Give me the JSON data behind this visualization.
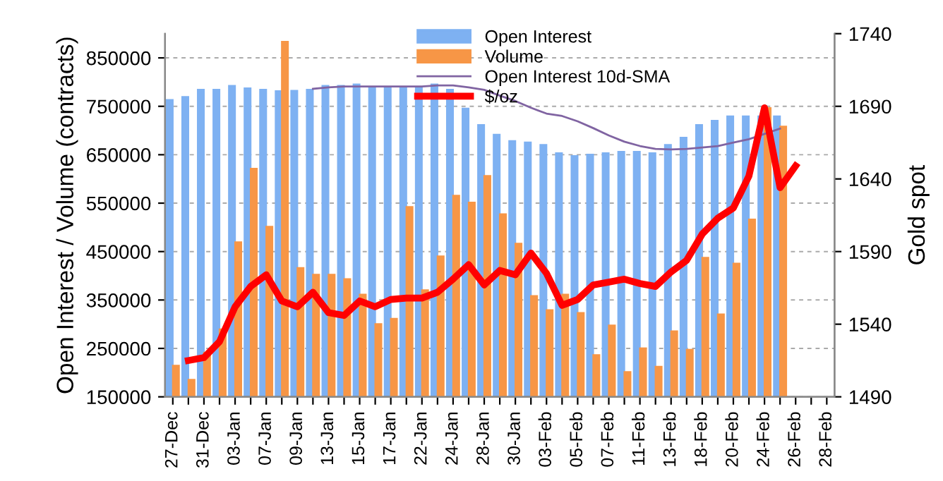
{
  "chart_data": {
    "type": "bar",
    "ylabel": "Open Interest / Volume (contracts)",
    "y2label": "Gold spot",
    "categories": [
      "27-Dec",
      null,
      "31-Dec",
      null,
      "03-Jan",
      null,
      "07-Jan",
      null,
      "09-Jan",
      null,
      "13-Jan",
      null,
      "15-Jan",
      null,
      "17-Jan",
      null,
      "22-Jan",
      null,
      "24-Jan",
      null,
      "28-Jan",
      null,
      "30-Jan",
      null,
      "03-Feb",
      null,
      "05-Feb",
      null,
      "07-Feb",
      null,
      "11-Feb",
      null,
      "13-Feb",
      null,
      "18-Feb",
      null,
      "20-Feb",
      null,
      "24-Feb",
      null,
      "26-Feb",
      null,
      "28-Feb"
    ],
    "series": [
      {
        "name": "Open Interest",
        "color": "#7eb1f2",
        "values": [
          765000,
          771000,
          786000,
          786000,
          794000,
          789000,
          786000,
          783000,
          784000,
          786000,
          794000,
          794000,
          797000,
          791000,
          791000,
          791000,
          791000,
          797000,
          786000,
          747000,
          713000,
          693000,
          680000,
          677000,
          672000,
          655000,
          649000,
          652000,
          655000,
          658000,
          658000,
          655000,
          672000,
          687000,
          713000,
          722000,
          731000,
          731000,
          731000,
          731000,
          null,
          null,
          null
        ]
      },
      {
        "name": "Volume",
        "color": "#f79646",
        "values": [
          216000,
          187000,
          243000,
          291000,
          471000,
          623000,
          503000,
          885000,
          418000,
          404000,
          404000,
          395000,
          363000,
          302000,
          313000,
          544000,
          372000,
          442000,
          567000,
          553000,
          608000,
          529000,
          468000,
          360000,
          331000,
          363000,
          325000,
          238000,
          299000,
          203000,
          252000,
          214000,
          287000,
          249000,
          439000,
          322000,
          427000,
          518000,
          748000,
          710000,
          null,
          null,
          null
        ]
      },
      {
        "name": "Open Interest 10d-SMA",
        "type": "line",
        "color": "#8064a2",
        "values": [
          null,
          null,
          null,
          null,
          null,
          null,
          null,
          null,
          null,
          786000,
          789000,
          791000,
          791000,
          791000,
          791000,
          791000,
          791000,
          793000,
          793000,
          789000,
          784000,
          772000,
          761000,
          747000,
          735000,
          730000,
          719000,
          705000,
          690000,
          677000,
          668000,
          662000,
          661000,
          662000,
          665000,
          668000,
          675000,
          682000,
          693000,
          704000,
          null,
          null,
          null
        ]
      },
      {
        "name": "$/oz",
        "type": "line",
        "axis": "y2",
        "color": "#ff0000",
        "values": [
          null,
          1515,
          1517,
          1528,
          1552,
          1566,
          1574,
          1556,
          1552,
          1562,
          1548,
          1546,
          1556,
          1552,
          1557,
          1558,
          1558,
          1562,
          1571,
          1581,
          1567,
          1577,
          1574,
          1589,
          1575,
          1553,
          1557,
          1567,
          1569,
          1571,
          1568,
          1566,
          1576,
          1584,
          1602,
          1613,
          1620,
          1642,
          1689,
          1634,
          1649,
          null,
          null
        ]
      }
    ],
    "ylim": [
      150000,
      900000
    ],
    "yticks": [
      150000,
      250000,
      350000,
      450000,
      550000,
      650000,
      750000,
      850000
    ],
    "y2lim": [
      1490,
      1740
    ],
    "y2ticks": [
      1490,
      1540,
      1590,
      1640,
      1690,
      1740
    ],
    "grid": "y",
    "legend": "top right",
    "line_style": "solid",
    "marker": "none"
  }
}
